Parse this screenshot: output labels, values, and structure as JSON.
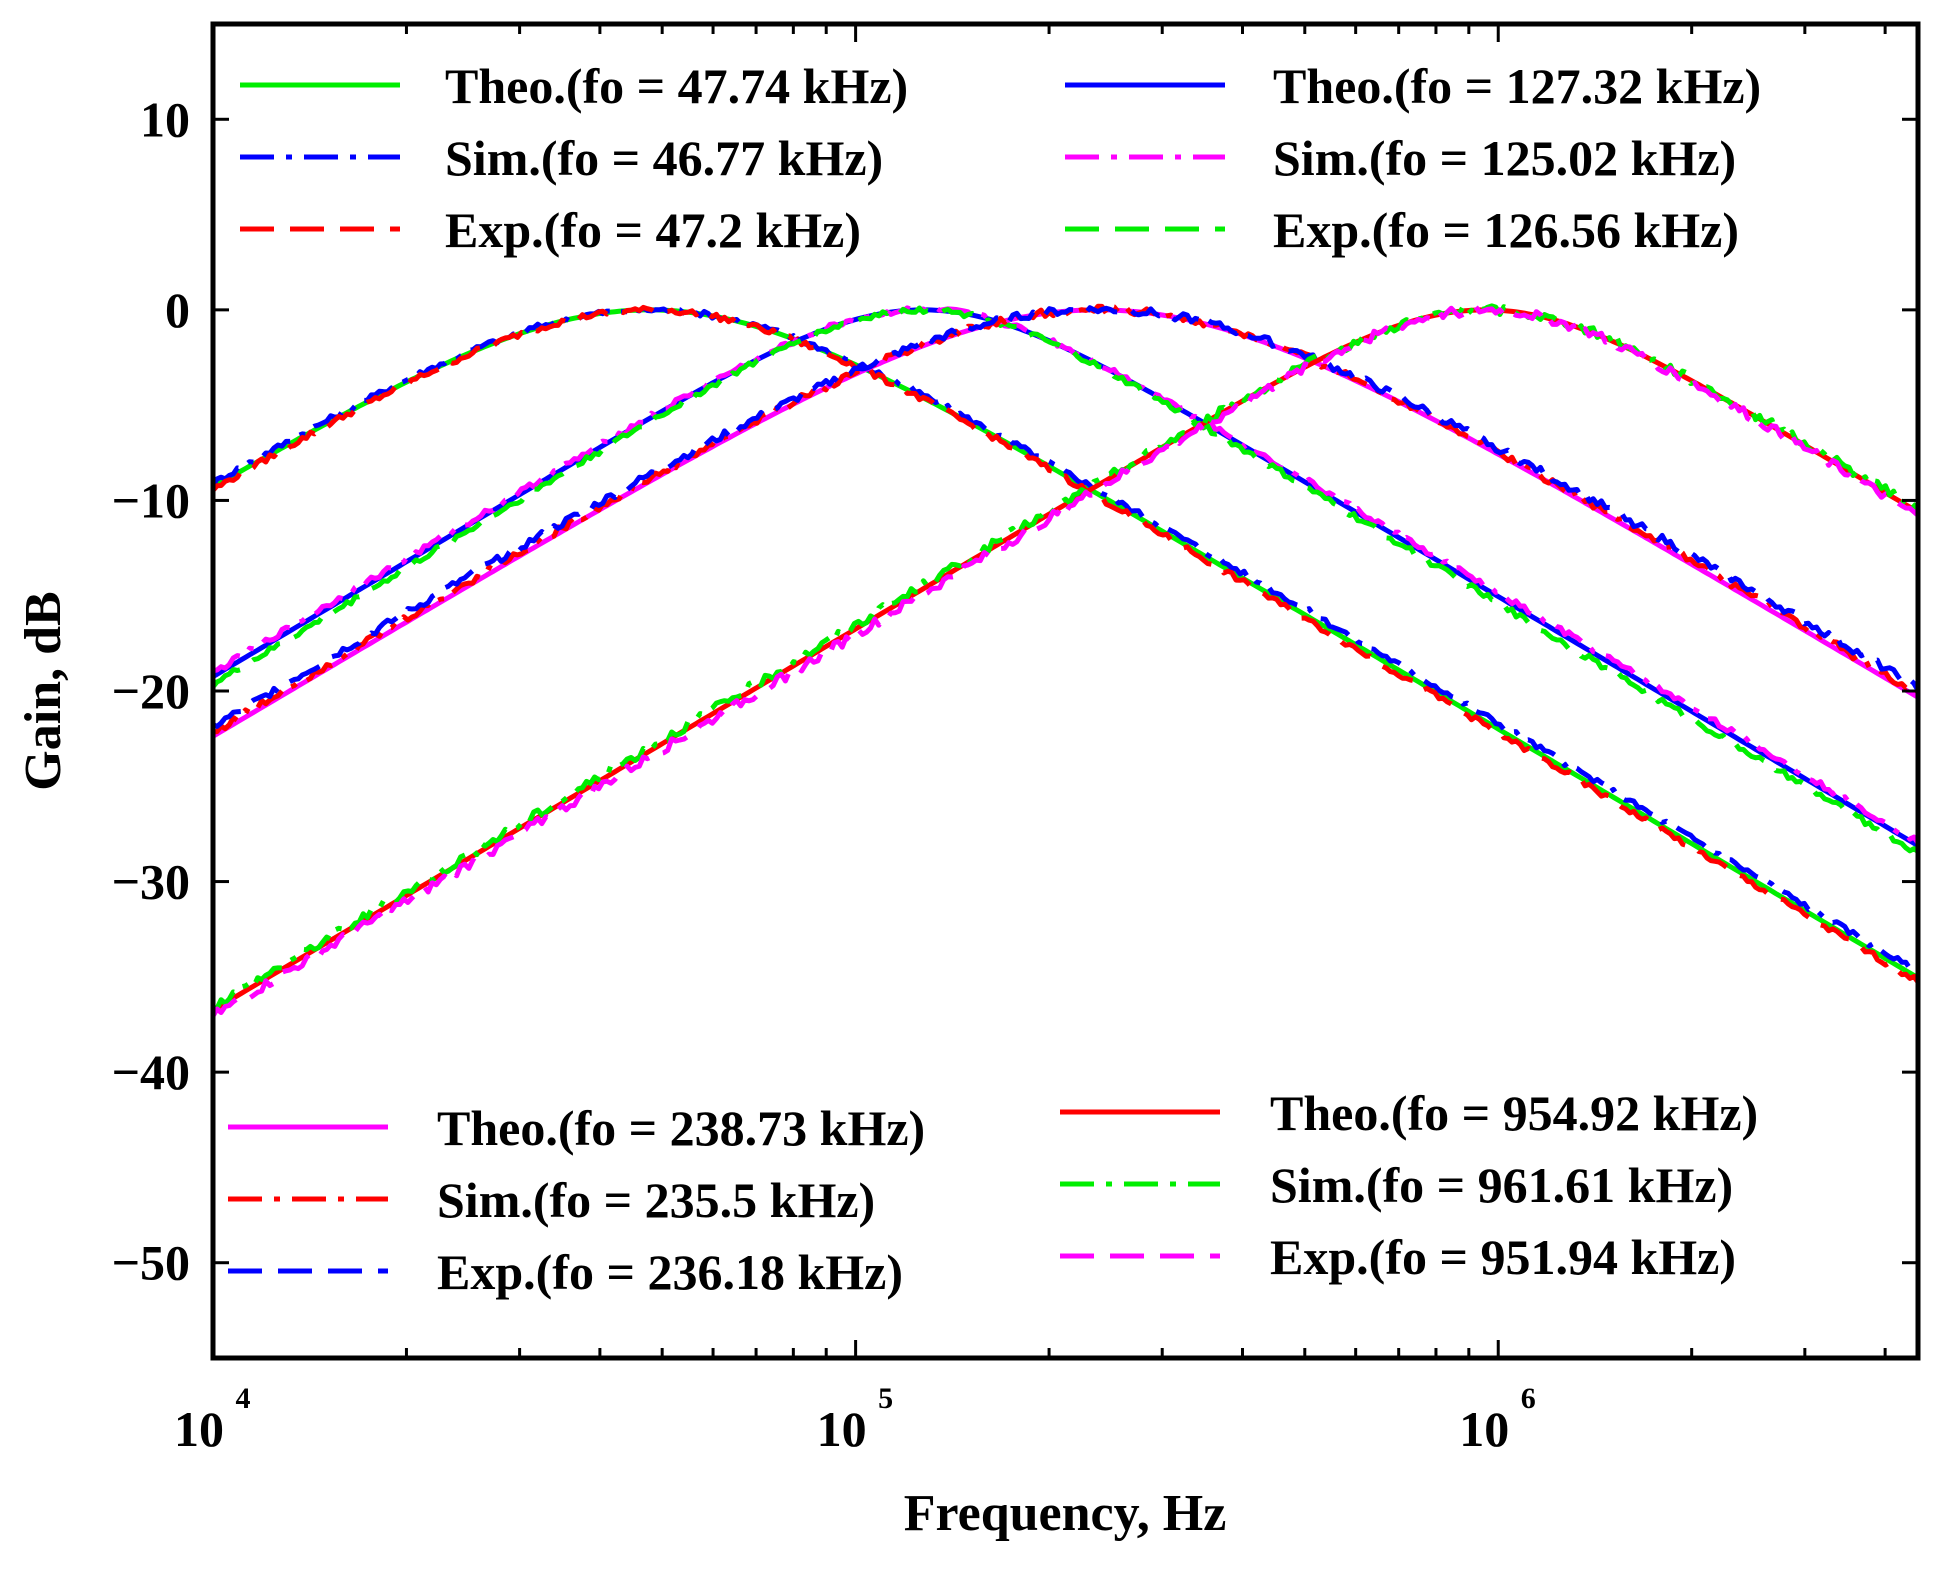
{
  "chart_data": {
    "type": "line",
    "xscale": "log",
    "xlabel": "Frequency, Hz",
    "ylabel": "Gain, dB",
    "xlim": [
      10000,
      4500000
    ],
    "ylim": [
      -55,
      15
    ],
    "x_ticks": [
      {
        "base": "10",
        "exp": "4",
        "value": 10000
      },
      {
        "base": "10",
        "exp": "5",
        "value": 100000
      },
      {
        "base": "10",
        "exp": "6",
        "value": 1000000
      }
    ],
    "y_ticks": [
      {
        "label": "10",
        "value": 10
      },
      {
        "label": "0",
        "value": 0
      },
      {
        "label": "−10",
        "value": -10
      },
      {
        "label": "−20",
        "value": -20
      },
      {
        "label": "−30",
        "value": -30
      },
      {
        "label": "−40",
        "value": -40
      },
      {
        "label": "−50",
        "value": -50
      }
    ],
    "filters": [
      {
        "fo": 47740,
        "q": 0.6,
        "jitter": 0.15
      },
      {
        "fo": 127320,
        "q": 0.72,
        "jitter": 0.15
      },
      {
        "fo": 238730,
        "q": 0.55,
        "jitter": 0.2
      },
      {
        "fo": 954920,
        "q": 0.72,
        "jitter": 0.25
      }
    ],
    "series": [
      {
        "name": "Theo.(fo = 47.74 kHz)",
        "filter": 0,
        "color": "#00ee00",
        "dash": "solid",
        "offset": 0
      },
      {
        "name": "Sim.(fo = 46.77 kHz)",
        "filter": 0,
        "color": "#0000ff",
        "dash": "dashdot",
        "offset": 0.3
      },
      {
        "name": "Exp.(fo = 47.2 kHz)",
        "filter": 0,
        "color": "#ff0000",
        "dash": "dashed",
        "offset": -0.2
      },
      {
        "name": "Theo.(fo = 127.32 kHz)",
        "filter": 1,
        "color": "#0000ff",
        "dash": "solid",
        "offset": 0
      },
      {
        "name": "Sim.(fo = 125.02 kHz)",
        "filter": 1,
        "color": "#ff00ff",
        "dash": "dashdot",
        "offset": 0.2
      },
      {
        "name": "Exp.(fo = 126.56 kHz)",
        "filter": 1,
        "color": "#00ee00",
        "dash": "dashed",
        "offset": -0.4
      },
      {
        "name": "Theo.(fo = 238.73 kHz)",
        "filter": 2,
        "color": "#ff00ff",
        "dash": "solid",
        "offset": 0
      },
      {
        "name": "Sim.(fo = 235.5 kHz)",
        "filter": 2,
        "color": "#ff0000",
        "dash": "dashdot",
        "offset": 0.2
      },
      {
        "name": "Exp.(fo = 236.18 kHz)",
        "filter": 2,
        "color": "#0000ff",
        "dash": "dashed",
        "offset": 0.5
      },
      {
        "name": "Theo.(fo = 954.92 kHz)",
        "filter": 3,
        "color": "#ff0000",
        "dash": "solid",
        "offset": 0
      },
      {
        "name": "Sim.(fo = 961.61 kHz)",
        "filter": 3,
        "color": "#00ee00",
        "dash": "dashdot",
        "offset": 0.2
      },
      {
        "name": "Exp.(fo = 951.94 kHz)",
        "filter": 3,
        "color": "#ff00ff",
        "dash": "dashed",
        "offset": -0.3
      }
    ],
    "legends": [
      {
        "position": "top-left",
        "entries": [
          0,
          1,
          2
        ]
      },
      {
        "position": "top-right",
        "entries": [
          3,
          4,
          5
        ]
      },
      {
        "position": "bottom-left",
        "entries": [
          6,
          7,
          8
        ]
      },
      {
        "position": "bottom-right",
        "entries": [
          9,
          10,
          11
        ]
      }
    ]
  }
}
